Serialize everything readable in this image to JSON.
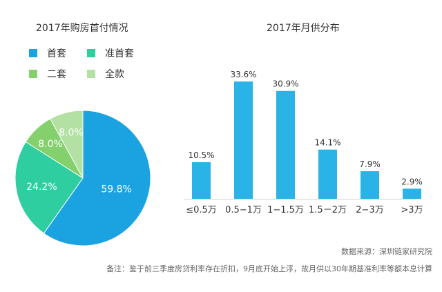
{
  "chart_data": [
    {
      "type": "pie",
      "title": "2017年购房首付情况",
      "legend_position": "top",
      "series": [
        {
          "name": "首套",
          "value": 59.8,
          "label": "59.8%",
          "color": "#1aa3e0"
        },
        {
          "name": "准首套",
          "value": 24.2,
          "label": "24.2%",
          "color": "#2fcea1"
        },
        {
          "name": "二套",
          "value": 8.0,
          "label": "8.0%",
          "color": "#84d06d"
        },
        {
          "name": "全款",
          "value": 8.0,
          "label": "8.0%",
          "color": "#b3e0a3"
        }
      ]
    },
    {
      "type": "bar",
      "title": "2017年月供分布",
      "categories": [
        "≤0.5万",
        "0.5−1万",
        "1−1.5万",
        "1.5－2万",
        "2−3万",
        ">3万"
      ],
      "values": [
        10.5,
        33.6,
        30.9,
        14.1,
        7.9,
        2.9
      ],
      "labels": [
        "10.5%",
        "33.6%",
        "30.9%",
        "14.1%",
        "7.9%",
        "2.9%"
      ],
      "ylim": [
        0,
        35
      ],
      "grid": false,
      "color": "#2ab3e6"
    }
  ],
  "source_note": "数据来源：深圳链家研究院",
  "remark": "备注：鉴于前三季度房贷利率存在折扣，9月底开始上浮，故月供以30年期基准利率等额本息计算"
}
